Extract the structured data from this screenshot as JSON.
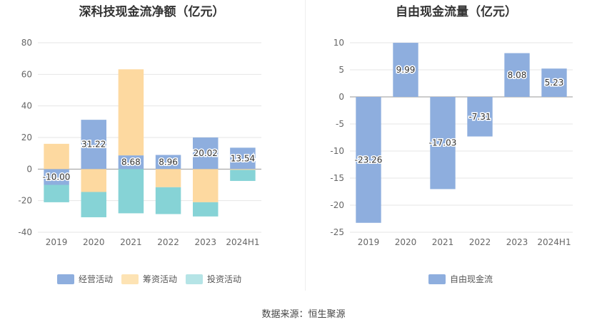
{
  "colors": {
    "operating": "#8eaede",
    "financing": "#fdd9a0",
    "investing": "#86d3d6",
    "free_cash_flow": "#8eaede",
    "grid": "#e6e6e6",
    "axis_text": "#666666"
  },
  "source": "数据来源：恒生聚源",
  "chart_data": [
    {
      "type": "bar",
      "stacked": true,
      "title": "深科技现金流净额（亿元）",
      "categories": [
        "2019",
        "2020",
        "2021",
        "2022",
        "2023",
        "2024H1"
      ],
      "series": [
        {
          "name": "经营活动",
          "key": "operating",
          "values": [
            -10.0,
            31.22,
            8.68,
            8.96,
            20.02,
            13.54
          ],
          "labeled": true
        },
        {
          "name": "筹资活动",
          "key": "financing",
          "values": [
            16.0,
            -14.5,
            54.5,
            -11.5,
            -21.0,
            -0.5
          ],
          "labeled": false
        },
        {
          "name": "投资活动",
          "key": "investing",
          "values": [
            -11.0,
            -16.0,
            -28.0,
            -17.0,
            -9.0,
            -7.0
          ],
          "labeled": false
        }
      ],
      "data_labels": [
        "-10.00",
        "31.22",
        "8.68",
        "8.96",
        "20.02",
        "13.54"
      ],
      "ylim": [
        -40,
        80
      ],
      "yticks": [
        -40,
        -20,
        0,
        20,
        40,
        60,
        80
      ],
      "legend": [
        "经营活动",
        "筹资活动",
        "投资活动"
      ],
      "legend_position": "bottom"
    },
    {
      "type": "bar",
      "title": "自由现金流量（亿元）",
      "categories": [
        "2019",
        "2020",
        "2021",
        "2022",
        "2023",
        "2024H1"
      ],
      "series": [
        {
          "name": "自由现金流",
          "key": "free_cash_flow",
          "values": [
            -23.26,
            9.99,
            -17.03,
            -7.31,
            8.08,
            5.23
          ]
        }
      ],
      "data_labels": [
        "-23.26",
        "9.99",
        "-17.03",
        "-7.31",
        "8.08",
        "5.23"
      ],
      "ylim": [
        -25,
        10
      ],
      "yticks": [
        -25,
        -20,
        -15,
        -10,
        -5,
        0,
        5,
        10
      ],
      "legend": [
        "自由现金流"
      ],
      "legend_position": "bottom"
    }
  ]
}
